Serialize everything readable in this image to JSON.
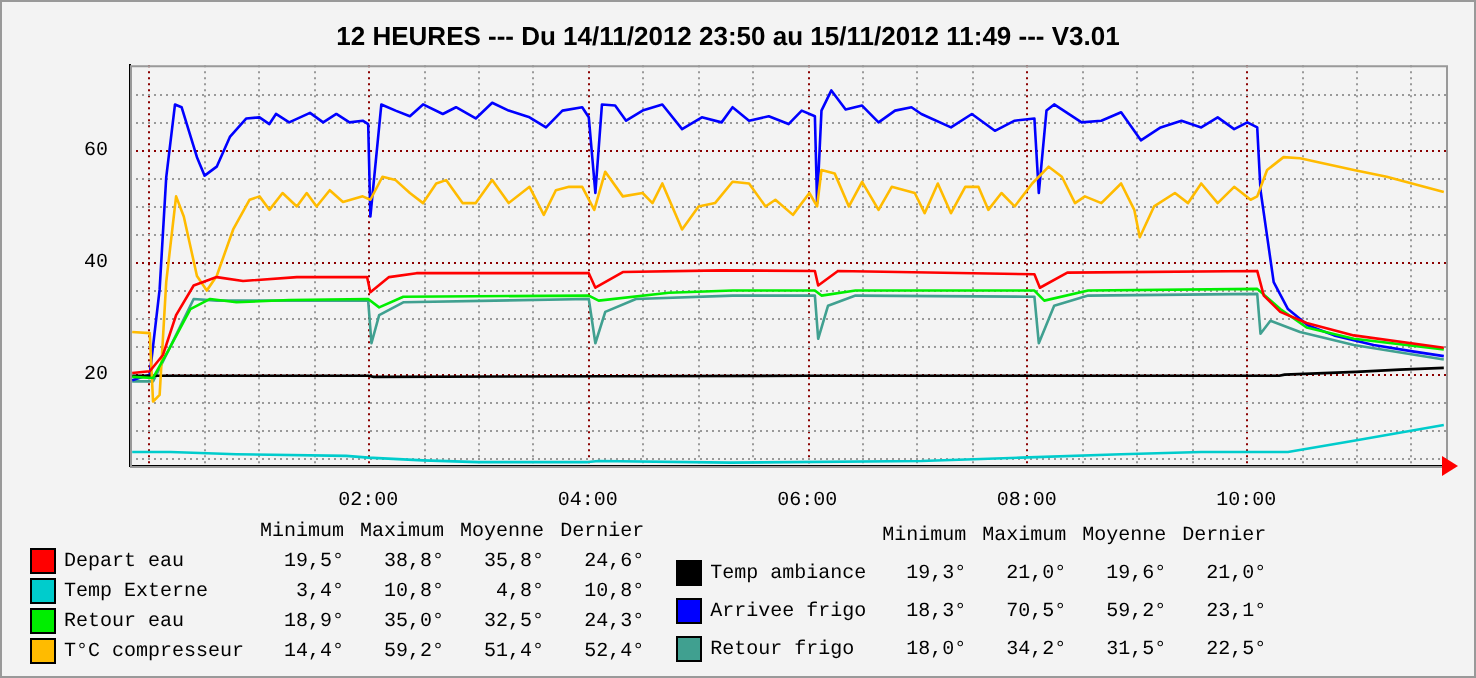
{
  "chart_data": {
    "type": "line",
    "title": "12 HEURES --- Du 14/11/2012 23:50 au 15/11/2012 11:49 --- V3.01",
    "xlim": [
      -0.17,
      11.82
    ],
    "xticks": [
      {
        "value": 0,
        "label": null
      },
      {
        "value": 0.5,
        "label": null
      },
      {
        "value": 1,
        "label": null
      },
      {
        "value": 1.5,
        "label": null
      },
      {
        "value": 2,
        "label": "02:00"
      },
      {
        "value": 2.5,
        "label": null
      },
      {
        "value": 3,
        "label": null
      },
      {
        "value": 3.5,
        "label": null
      },
      {
        "value": 4,
        "label": "04:00"
      },
      {
        "value": 4.5,
        "label": null
      },
      {
        "value": 5,
        "label": null
      },
      {
        "value": 5.5,
        "label": null
      },
      {
        "value": 6,
        "label": "06:00"
      },
      {
        "value": 6.5,
        "label": null
      },
      {
        "value": 7,
        "label": null
      },
      {
        "value": 7.5,
        "label": null
      },
      {
        "value": 8,
        "label": "08:00"
      },
      {
        "value": 8.5,
        "label": null
      },
      {
        "value": 9,
        "label": null
      },
      {
        "value": 9.5,
        "label": null
      },
      {
        "value": 10,
        "label": "10:00"
      },
      {
        "value": 10.5,
        "label": null
      },
      {
        "value": 11,
        "label": null
      },
      {
        "value": 11.5,
        "label": null
      }
    ],
    "ylim": [
      3.5,
      75
    ],
    "yticks": [
      {
        "value": 5,
        "label": null
      },
      {
        "value": 10,
        "label": null
      },
      {
        "value": 15,
        "label": null
      },
      20,
      {
        "value": 25,
        "label": null
      },
      {
        "value": 30,
        "label": null
      },
      {
        "value": 35,
        "label": null
      },
      40,
      {
        "value": 45,
        "label": null
      },
      {
        "value": 50,
        "label": null
      },
      {
        "value": 55,
        "label": null
      },
      60,
      {
        "value": 65,
        "label": null
      },
      {
        "value": 70,
        "label": null
      }
    ],
    "grid": true,
    "legend": "bottom",
    "marker": "none",
    "line_style": "solid",
    "annotations": [
      "Minimum",
      "Maximum",
      "Moyenne",
      "Dernier",
      "19,5°",
      "38,8°",
      "35,8°",
      "24,6°",
      "3,4°",
      "10,8°",
      "4,8°",
      "10,8°",
      "18,9°",
      "35,0°",
      "32,5°",
      "24,3°",
      "14,4°",
      "59,2°",
      "51,4°",
      "52,4°",
      "19,3°",
      "21,0°",
      "19,6°",
      "21,0°",
      "18,3°",
      "70,5°",
      "59,2°",
      "23,1°",
      "18,0°",
      "34,2°",
      "31,5°",
      "22,5°"
    ],
    "series": [
      {
        "name": "Depart eau",
        "color": "#ff0000",
        "x": [
          -0.15,
          0.01,
          0.13,
          0.25,
          0.41,
          0.62,
          0.86,
          1.35,
          1.99,
          2.02,
          2.19,
          2.44,
          4.01,
          4.07,
          4.32,
          5.22,
          6.07,
          6.1,
          6.28,
          8.07,
          8.12,
          8.37,
          10.1,
          10.16,
          10.31,
          10.55,
          10.98,
          11.8
        ],
        "values": [
          20.1,
          20.4,
          23.3,
          30.4,
          35.7,
          37.2,
          36.5,
          37.2,
          37.2,
          34.5,
          37.2,
          37.9,
          37.9,
          35.3,
          38.1,
          38.4,
          38.3,
          35.7,
          38.3,
          37.7,
          35.3,
          38,
          38.3,
          33.9,
          31,
          29,
          26.8,
          24.6
        ]
      },
      {
        "name": "Temp Externe",
        "color": "#00cccc",
        "x": [
          -0.15,
          0.2,
          0.8,
          1.8,
          2.0,
          2.5,
          3.0,
          4.0,
          4.1,
          5.3,
          7.04,
          7.95,
          8.86,
          9.59,
          10.38,
          10.98,
          11.8
        ],
        "values": [
          6.0,
          6.0,
          5.6,
          5.3,
          5.0,
          4.5,
          4.2,
          4.2,
          4.4,
          4.1,
          4.4,
          5.0,
          5.6,
          6.0,
          6.0,
          8.0,
          10.8
        ]
      },
      {
        "name": "Retour eau",
        "color": "#00ee00",
        "x": [
          -0.15,
          0.04,
          0.19,
          0.38,
          0.56,
          0.8,
          1.28,
          2.0,
          2.1,
          2.32,
          4.01,
          4.1,
          4.74,
          5.32,
          6.07,
          6.13,
          6.44,
          8.07,
          8.16,
          8.56,
          10.1,
          10.31,
          10.55,
          10.98,
          11.8
        ],
        "values": [
          19.4,
          19.2,
          24.5,
          31.5,
          33.3,
          32.7,
          33.1,
          33.3,
          31.8,
          33.7,
          33.9,
          33,
          34.4,
          34.8,
          34.8,
          33.9,
          34.8,
          34.8,
          33,
          34.8,
          35.1,
          31.5,
          28.2,
          26.2,
          24.3
        ]
      },
      {
        "name": "T°C compresseur",
        "color": "#ffbb00",
        "x": [
          -0.15,
          0.01,
          0.04,
          0.1,
          0.16,
          0.25,
          0.32,
          0.44,
          0.53,
          0.62,
          0.77,
          0.92,
          1.01,
          1.1,
          1.22,
          1.35,
          1.44,
          1.53,
          1.65,
          1.77,
          1.95,
          2.02,
          2.13,
          2.25,
          2.38,
          2.5,
          2.62,
          2.71,
          2.86,
          2.98,
          3.13,
          3.28,
          3.47,
          3.6,
          3.71,
          3.83,
          3.95,
          4.06,
          4.16,
          4.32,
          4.5,
          4.59,
          4.68,
          4.86,
          5.01,
          5.16,
          5.32,
          5.47,
          5.62,
          5.71,
          5.87,
          6.02,
          6.09,
          6.13,
          6.25,
          6.38,
          6.5,
          6.65,
          6.77,
          6.98,
          7.07,
          7.19,
          7.31,
          7.44,
          7.56,
          7.65,
          7.77,
          7.89,
          8.05,
          8.2,
          8.32,
          8.44,
          8.53,
          8.68,
          8.86,
          8.98,
          9.03,
          9.16,
          9.35,
          9.47,
          9.59,
          9.74,
          9.89,
          10.04,
          10.1,
          10.19,
          10.34,
          10.49,
          10.98,
          11.28,
          11.8
        ],
        "values": [
          27.4,
          27.2,
          15,
          16.2,
          36.3,
          51.6,
          48,
          37.4,
          34.8,
          37.4,
          45.7,
          51,
          51.6,
          49.2,
          52.2,
          49.8,
          52.2,
          49.8,
          52.7,
          50.6,
          51.6,
          51,
          55.1,
          54.5,
          52.2,
          50.4,
          53.9,
          54.5,
          50.4,
          50.4,
          54.5,
          50.4,
          53.3,
          48.3,
          52.7,
          53.3,
          53.3,
          49.2,
          56,
          51.6,
          52.2,
          50.4,
          53.9,
          45.7,
          49.8,
          50.4,
          54.2,
          53.9,
          49.8,
          51,
          48.3,
          52.2,
          49.8,
          56.3,
          55.7,
          49.8,
          54.2,
          49.2,
          53.3,
          52.2,
          48.6,
          53.9,
          48.6,
          53.3,
          53.3,
          49.2,
          52.2,
          49.8,
          53.9,
          56.9,
          55.1,
          50.4,
          51.6,
          50.4,
          53.9,
          49.2,
          44.3,
          49.8,
          52.2,
          50.4,
          53.9,
          50.4,
          53.3,
          51,
          51.6,
          56.3,
          58.6,
          58.4,
          56.3,
          55.1,
          52.4
        ]
      },
      {
        "name": "Temp ambiance",
        "color": "#000000",
        "x": [
          -0.15,
          2.0,
          2.05,
          4.2,
          6.0,
          8.0,
          10.3,
          10.35,
          11.0,
          11.4,
          11.8
        ],
        "values": [
          19.6,
          19.6,
          19.4,
          19.5,
          19.6,
          19.6,
          19.6,
          19.8,
          20.3,
          20.7,
          21.0
        ]
      },
      {
        "name": "Arrivee frigo",
        "color": "#0000ff",
        "x": [
          -0.15,
          0.01,
          0.1,
          0.16,
          0.24,
          0.3,
          0.44,
          0.51,
          0.62,
          0.74,
          0.89,
          1.01,
          1.1,
          1.16,
          1.28,
          1.47,
          1.59,
          1.71,
          1.83,
          1.95,
          2.0,
          2.02,
          2.05,
          2.12,
          2.25,
          2.38,
          2.5,
          2.68,
          2.8,
          2.98,
          3.13,
          3.28,
          3.47,
          3.62,
          3.77,
          3.95,
          4.01,
          4.07,
          4.13,
          4.25,
          4.35,
          4.5,
          4.68,
          4.86,
          5.04,
          5.22,
          5.32,
          5.47,
          5.65,
          5.83,
          5.95,
          6.07,
          6.09,
          6.13,
          6.22,
          6.35,
          6.5,
          6.65,
          6.8,
          6.95,
          7.04,
          7.31,
          7.5,
          7.71,
          7.89,
          8.07,
          8.11,
          8.18,
          8.25,
          8.5,
          8.68,
          8.86,
          9.04,
          9.22,
          9.41,
          9.59,
          9.74,
          9.89,
          10.01,
          10.1,
          10.13,
          10.19,
          10.25,
          10.38,
          10.56,
          10.8,
          11.16,
          11.53,
          11.8
        ],
        "values": [
          18.8,
          19.8,
          35,
          55,
          68,
          67.5,
          58.6,
          55.3,
          56.9,
          62.2,
          65.5,
          65.7,
          64.5,
          66.3,
          64.8,
          66.5,
          64.8,
          66.3,
          64.8,
          65.1,
          64.5,
          48,
          54,
          68,
          66.9,
          65.9,
          68,
          66.3,
          67.5,
          65.5,
          68.3,
          66.9,
          65.7,
          63.9,
          66.9,
          67.5,
          65.7,
          52.2,
          68,
          67.8,
          65.1,
          66.9,
          68,
          63.6,
          65.7,
          64.8,
          67.5,
          65.1,
          65.9,
          64.5,
          66.9,
          65.9,
          50.4,
          66.9,
          70.5,
          67.1,
          67.8,
          64.8,
          66.9,
          67.5,
          66.3,
          63.9,
          66.3,
          63.3,
          65.1,
          65.5,
          52.2,
          66.9,
          68,
          64.8,
          65.1,
          66.6,
          61.6,
          63.9,
          65.1,
          63.9,
          65.7,
          63.6,
          64.8,
          63.9,
          52.7,
          44.5,
          36.3,
          31.5,
          28.6,
          26.8,
          25.1,
          23.9,
          23.1
        ]
      },
      {
        "name": "Retour frigo",
        "color": "#40a090",
        "x": [
          -0.15,
          0.04,
          0.19,
          0.41,
          0.62,
          2.0,
          2.03,
          2.1,
          2.32,
          4.01,
          4.07,
          4.16,
          4.44,
          5.32,
          6.07,
          6.1,
          6.19,
          6.44,
          8.07,
          8.11,
          8.25,
          8.56,
          10.1,
          10.13,
          10.22,
          10.49,
          10.98,
          11.8
        ],
        "values": [
          18.6,
          18.6,
          24.5,
          33.3,
          33,
          33,
          25.4,
          30.4,
          32.7,
          33.3,
          25.4,
          31,
          33.3,
          33.9,
          33.9,
          26.2,
          32.1,
          33.9,
          33.7,
          25.4,
          32.1,
          33.9,
          34.2,
          27.1,
          29.4,
          27.4,
          25.1,
          22.5
        ]
      }
    ]
  }
}
